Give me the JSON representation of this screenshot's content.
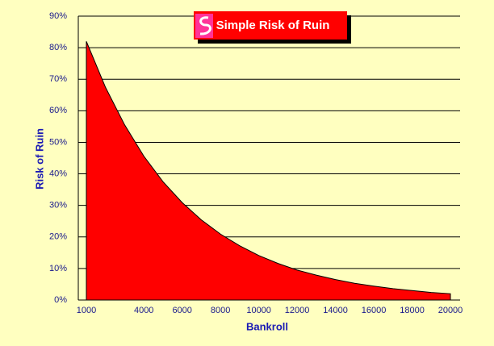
{
  "chart_data": {
    "type": "area",
    "title": "Simple Risk of Ruin",
    "x_label": "Bankroll",
    "y_label": "Risk of Ruin",
    "x": [
      1000,
      2000,
      3000,
      4000,
      5000,
      6000,
      7000,
      8000,
      9000,
      10000,
      11000,
      12000,
      13000,
      14000,
      15000,
      16000,
      17000,
      18000,
      19000,
      20000
    ],
    "values": [
      82,
      67.4,
      55.5,
      45.6,
      37.5,
      30.9,
      25.4,
      20.9,
      17.2,
      14.1,
      11.6,
      9.5,
      7.9,
      6.5,
      5.3,
      4.4,
      3.6,
      3.0,
      2.4,
      2.0
    ],
    "color": "#ff0000",
    "xlim": [
      1000,
      20000
    ],
    "xticks": [
      1000,
      4000,
      6000,
      8000,
      10000,
      12000,
      14000,
      16000,
      18000,
      20000
    ],
    "ylim": [
      0,
      90
    ],
    "yticks": [
      {
        "value": 0,
        "label": "0%"
      },
      {
        "value": 10,
        "label": "10%"
      },
      {
        "value": 20,
        "label": "20%"
      },
      {
        "value": 30,
        "label": "30%"
      },
      {
        "value": 40,
        "label": "40%"
      },
      {
        "value": 50,
        "label": "50%"
      },
      {
        "value": 60,
        "label": "60%"
      },
      {
        "value": 70,
        "label": "70%"
      },
      {
        "value": 80,
        "label": "80%"
      },
      {
        "value": 90,
        "label": "90%"
      }
    ],
    "grid": true
  }
}
